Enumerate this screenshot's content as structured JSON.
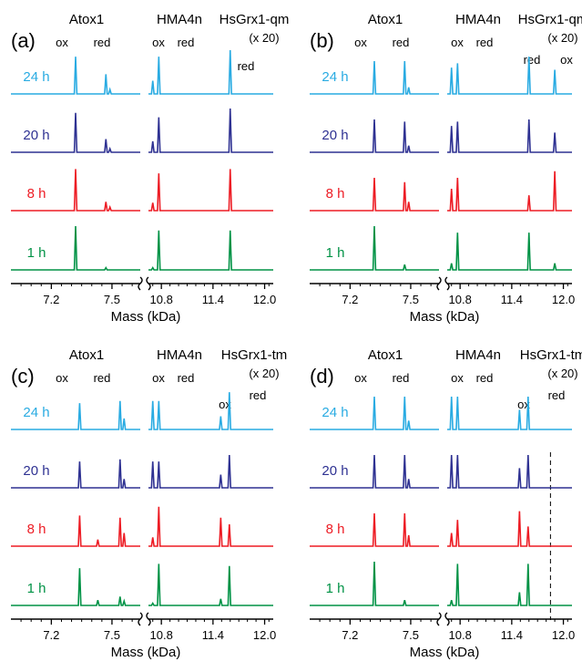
{
  "colors": {
    "t24": "#29abe2",
    "t20": "#2e3192",
    "t8": "#ed1c24",
    "t1": "#009245",
    "axis": "#000000"
  },
  "chart_data": [
    {
      "panel": "(a)",
      "type": "line",
      "title": "",
      "xlabel": "Mass (kDa)",
      "ylabel": "",
      "protein_labels": [
        "Atox1",
        "HMA4n",
        "HsGrx1-qm"
      ],
      "scale_note": "(x 20)",
      "peak_labels": [
        "ox",
        "red",
        "ox",
        "red",
        "red"
      ],
      "x_tick_labels": [
        "7.2",
        "7.5",
        "10.8",
        "11.4",
        "12.0"
      ],
      "xlim_segments": [
        [
          7.0,
          7.64
        ],
        [
          10.65,
          12.1
        ]
      ],
      "axis_break": true,
      "series": [
        {
          "name": "24 h",
          "peaks": [
            {
              "x": 7.32,
              "h": 0.85
            },
            {
              "x": 7.47,
              "h": 0.45
            },
            {
              "x": 7.49,
              "h": 0.1
            },
            {
              "x": 10.7,
              "h": 0.3
            },
            {
              "x": 10.77,
              "h": 0.85
            },
            {
              "x": 11.6,
              "h": 1.0
            }
          ]
        },
        {
          "name": "20 h",
          "peaks": [
            {
              "x": 7.32,
              "h": 0.9
            },
            {
              "x": 7.47,
              "h": 0.3
            },
            {
              "x": 7.49,
              "h": 0.08
            },
            {
              "x": 10.7,
              "h": 0.25
            },
            {
              "x": 10.77,
              "h": 0.8
            },
            {
              "x": 11.6,
              "h": 1.0
            }
          ]
        },
        {
          "name": "8 h",
          "peaks": [
            {
              "x": 7.32,
              "h": 0.95
            },
            {
              "x": 7.47,
              "h": 0.2
            },
            {
              "x": 7.49,
              "h": 0.08
            },
            {
              "x": 10.7,
              "h": 0.18
            },
            {
              "x": 10.77,
              "h": 0.85
            },
            {
              "x": 11.6,
              "h": 0.95
            }
          ]
        },
        {
          "name": "1 h",
          "peaks": [
            {
              "x": 7.32,
              "h": 1.0
            },
            {
              "x": 7.47,
              "h": 0.05
            },
            {
              "x": 10.7,
              "h": 0.05
            },
            {
              "x": 10.77,
              "h": 0.9
            },
            {
              "x": 11.6,
              "h": 0.9
            }
          ]
        }
      ]
    },
    {
      "panel": "(b)",
      "type": "line",
      "title": "",
      "xlabel": "Mass (kDa)",
      "ylabel": "",
      "protein_labels": [
        "Atox1",
        "HMA4n",
        "HsGrx1-qm"
      ],
      "scale_note": "(x 20)",
      "peak_labels": [
        "ox",
        "red",
        "ox",
        "red",
        "red",
        "ox"
      ],
      "x_tick_labels": [
        "7.2",
        "7.5",
        "10.8",
        "11.4",
        "12.0"
      ],
      "xlim_segments": [
        [
          7.0,
          7.64
        ],
        [
          10.65,
          12.1
        ]
      ],
      "axis_break": true,
      "series": [
        {
          "name": "24 h",
          "peaks": [
            {
              "x": 7.32,
              "h": 0.75
            },
            {
              "x": 7.47,
              "h": 0.75
            },
            {
              "x": 7.49,
              "h": 0.15
            },
            {
              "x": 10.7,
              "h": 0.6
            },
            {
              "x": 10.77,
              "h": 0.7
            },
            {
              "x": 11.6,
              "h": 0.85
            },
            {
              "x": 11.9,
              "h": 0.55
            }
          ]
        },
        {
          "name": "20 h",
          "peaks": [
            {
              "x": 7.32,
              "h": 0.75
            },
            {
              "x": 7.47,
              "h": 0.7
            },
            {
              "x": 7.49,
              "h": 0.15
            },
            {
              "x": 10.7,
              "h": 0.6
            },
            {
              "x": 10.77,
              "h": 0.7
            },
            {
              "x": 11.6,
              "h": 0.75
            },
            {
              "x": 11.9,
              "h": 0.45
            }
          ]
        },
        {
          "name": "8 h",
          "peaks": [
            {
              "x": 7.32,
              "h": 0.75
            },
            {
              "x": 7.47,
              "h": 0.65
            },
            {
              "x": 7.49,
              "h": 0.2
            },
            {
              "x": 10.7,
              "h": 0.5
            },
            {
              "x": 10.77,
              "h": 0.75
            },
            {
              "x": 11.6,
              "h": 0.35
            },
            {
              "x": 11.9,
              "h": 0.9
            }
          ]
        },
        {
          "name": "1 h",
          "peaks": [
            {
              "x": 7.32,
              "h": 1.0
            },
            {
              "x": 7.47,
              "h": 0.12
            },
            {
              "x": 10.7,
              "h": 0.15
            },
            {
              "x": 10.77,
              "h": 0.85
            },
            {
              "x": 11.6,
              "h": 0.85
            },
            {
              "x": 11.9,
              "h": 0.15
            }
          ]
        }
      ]
    },
    {
      "panel": "(c)",
      "type": "line",
      "title": "",
      "xlabel": "Mass (kDa)",
      "ylabel": "",
      "protein_labels": [
        "Atox1",
        "HMA4n",
        "HsGrx1-tm"
      ],
      "scale_note": "(x 20)",
      "peak_labels": [
        "ox",
        "red",
        "ox",
        "red",
        "ox",
        "red"
      ],
      "x_tick_labels": [
        "7.2",
        "7.5",
        "10.8",
        "11.4",
        "12.0"
      ],
      "xlim_segments": [
        [
          7.0,
          7.64
        ],
        [
          10.65,
          12.1
        ]
      ],
      "axis_break": true,
      "series": [
        {
          "name": "24 h",
          "peaks": [
            {
              "x": 7.34,
              "h": 0.6
            },
            {
              "x": 7.54,
              "h": 0.65
            },
            {
              "x": 7.56,
              "h": 0.25
            },
            {
              "x": 10.7,
              "h": 0.65
            },
            {
              "x": 10.77,
              "h": 0.65
            },
            {
              "x": 11.49,
              "h": 0.3
            },
            {
              "x": 11.59,
              "h": 0.85
            }
          ]
        },
        {
          "name": "20 h",
          "peaks": [
            {
              "x": 7.34,
              "h": 0.6
            },
            {
              "x": 7.54,
              "h": 0.65
            },
            {
              "x": 7.56,
              "h": 0.2
            },
            {
              "x": 10.7,
              "h": 0.6
            },
            {
              "x": 10.77,
              "h": 0.6
            },
            {
              "x": 11.49,
              "h": 0.3
            },
            {
              "x": 11.59,
              "h": 0.75
            }
          ]
        },
        {
          "name": "8 h",
          "peaks": [
            {
              "x": 7.34,
              "h": 0.7
            },
            {
              "x": 7.43,
              "h": 0.15
            },
            {
              "x": 7.54,
              "h": 0.65
            },
            {
              "x": 7.56,
              "h": 0.3
            },
            {
              "x": 10.7,
              "h": 0.2
            },
            {
              "x": 10.77,
              "h": 0.9
            },
            {
              "x": 11.49,
              "h": 0.65
            },
            {
              "x": 11.59,
              "h": 0.5
            }
          ]
        },
        {
          "name": "1 h",
          "peaks": [
            {
              "x": 7.34,
              "h": 0.85
            },
            {
              "x": 7.43,
              "h": 0.12
            },
            {
              "x": 7.54,
              "h": 0.2
            },
            {
              "x": 7.56,
              "h": 0.1
            },
            {
              "x": 10.7,
              "h": 0.05
            },
            {
              "x": 10.77,
              "h": 0.95
            },
            {
              "x": 11.49,
              "h": 0.15
            },
            {
              "x": 11.59,
              "h": 0.9
            }
          ]
        }
      ]
    },
    {
      "panel": "(d)",
      "type": "line",
      "title": "",
      "xlabel": "Mass (kDa)",
      "ylabel": "",
      "protein_labels": [
        "Atox1",
        "HMA4n",
        "HsGrx1-tm"
      ],
      "scale_note": "(x 20)",
      "peak_labels": [
        "ox",
        "red",
        "ox",
        "red",
        "ox",
        "red"
      ],
      "x_tick_labels": [
        "7.2",
        "7.5",
        "10.8",
        "11.4",
        "12.0"
      ],
      "xlim_segments": [
        [
          7.0,
          7.64
        ],
        [
          10.65,
          12.1
        ]
      ],
      "axis_break": true,
      "dashed_marker_x": 11.85,
      "series": [
        {
          "name": "24 h",
          "peaks": [
            {
              "x": 7.32,
              "h": 0.75
            },
            {
              "x": 7.47,
              "h": 0.75
            },
            {
              "x": 7.49,
              "h": 0.2
            },
            {
              "x": 10.7,
              "h": 0.75
            },
            {
              "x": 10.77,
              "h": 0.75
            },
            {
              "x": 11.49,
              "h": 0.45
            },
            {
              "x": 11.59,
              "h": 0.75
            }
          ]
        },
        {
          "name": "20 h",
          "peaks": [
            {
              "x": 7.32,
              "h": 0.75
            },
            {
              "x": 7.47,
              "h": 0.75
            },
            {
              "x": 7.49,
              "h": 0.2
            },
            {
              "x": 10.7,
              "h": 0.75
            },
            {
              "x": 10.77,
              "h": 0.75
            },
            {
              "x": 11.49,
              "h": 0.45
            },
            {
              "x": 11.59,
              "h": 0.75
            }
          ]
        },
        {
          "name": "8 h",
          "peaks": [
            {
              "x": 7.32,
              "h": 0.75
            },
            {
              "x": 7.47,
              "h": 0.75
            },
            {
              "x": 7.49,
              "h": 0.25
            },
            {
              "x": 10.7,
              "h": 0.3
            },
            {
              "x": 10.77,
              "h": 0.6
            },
            {
              "x": 11.49,
              "h": 0.8
            },
            {
              "x": 11.59,
              "h": 0.45
            }
          ]
        },
        {
          "name": "1 h",
          "peaks": [
            {
              "x": 7.32,
              "h": 1.0
            },
            {
              "x": 7.47,
              "h": 0.12
            },
            {
              "x": 10.7,
              "h": 0.12
            },
            {
              "x": 10.77,
              "h": 0.95
            },
            {
              "x": 11.49,
              "h": 0.3
            },
            {
              "x": 11.59,
              "h": 0.95
            }
          ]
        }
      ]
    }
  ]
}
